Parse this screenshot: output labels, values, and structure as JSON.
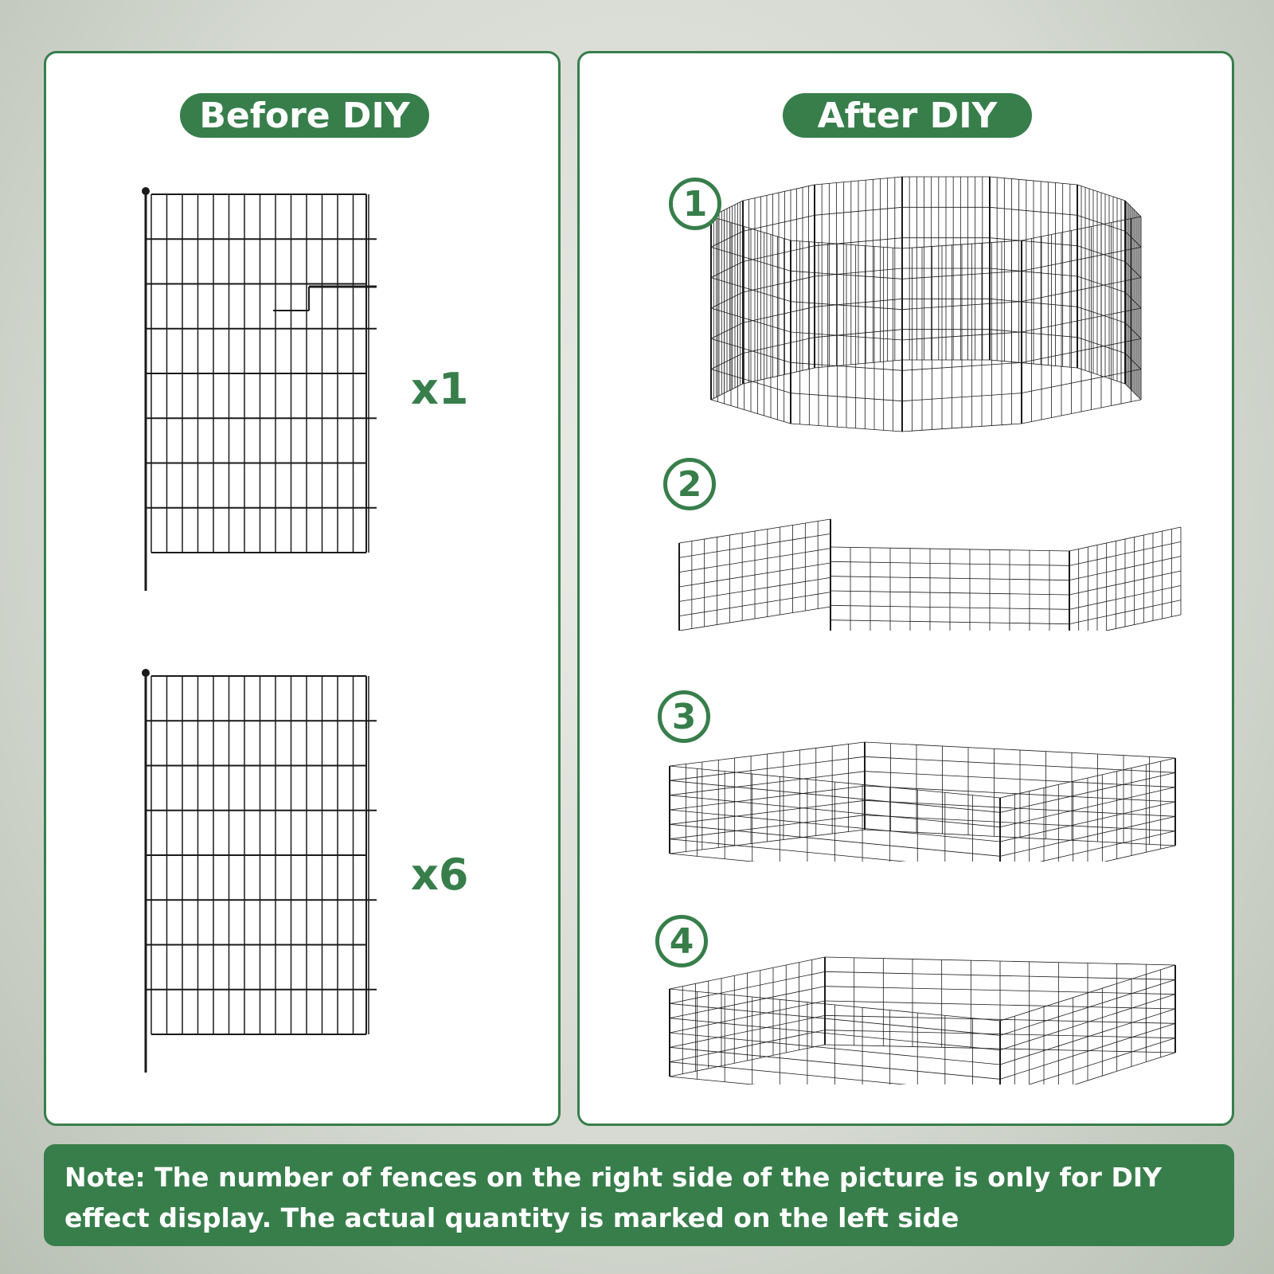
{
  "before": {
    "title": "Before DIY",
    "items": [
      {
        "quantity": "x1",
        "type": "gate-panel"
      },
      {
        "quantity": "x6",
        "type": "fence-panel"
      }
    ]
  },
  "after": {
    "title": "After DIY",
    "layouts": [
      {
        "number": "1",
        "shape": "round"
      },
      {
        "number": "2",
        "shape": "u-shape"
      },
      {
        "number": "3",
        "shape": "rectangle"
      },
      {
        "number": "4",
        "shape": "large rectangle"
      }
    ]
  },
  "note": "Note: The number of fences on the right side of the picture is only for DIY effect display. The actual quantity is marked on the left side",
  "colors": {
    "accent": "#377e4b",
    "fence": "#1a1a1a"
  }
}
